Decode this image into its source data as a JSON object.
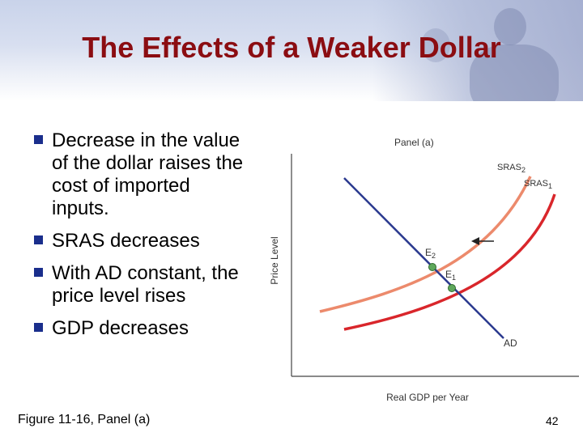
{
  "slide": {
    "title": "The Effects of a Weaker Dollar",
    "bullets": [
      {
        "text": "Decrease in the value of the dollar raises the cost of imported inputs."
      },
      {
        "text": "SRAS decreases"
      },
      {
        "text": "With AD constant, the price level rises"
      },
      {
        "text": "GDP decreases"
      }
    ],
    "caption": "Figure 11-16, Panel (a)",
    "page_number": "42"
  },
  "diagram": {
    "panel_label": "Panel (a)",
    "y_axis_label": "Price Level",
    "x_axis_label": "Real GDP per Year",
    "curves": {
      "ad": {
        "label": "AD",
        "color": "#2b3a8f"
      },
      "sras1": {
        "label": "SRAS",
        "subscript": "1",
        "color": "#d9262b"
      },
      "sras2": {
        "label": "SRAS",
        "subscript": "2",
        "color": "#ec8a6c"
      }
    },
    "points": {
      "e1": {
        "label": "E",
        "subscript": "1",
        "color": "#5fa85c"
      },
      "e2": {
        "label": "E",
        "subscript": "2",
        "color": "#5fa85c"
      }
    }
  }
}
